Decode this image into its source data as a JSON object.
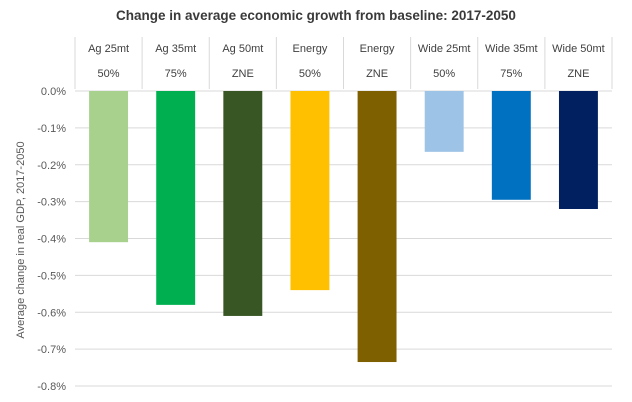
{
  "chart_data": {
    "type": "bar",
    "title": "Change in average economic growth from baseline: 2017-2050",
    "xlabel": "",
    "ylabel": "Average change in real GDP, 2017-2050",
    "ylim": [
      -0.8,
      0.0
    ],
    "yticks": [
      0.0,
      -0.1,
      -0.2,
      -0.3,
      -0.4,
      -0.5,
      -0.6,
      -0.7,
      -0.8
    ],
    "ytick_labels": [
      "0.0%",
      "-0.1%",
      "-0.2%",
      "-0.3%",
      "-0.4%",
      "-0.5%",
      "-0.6%",
      "-0.7%",
      "-0.8%"
    ],
    "grid": true,
    "legend": "none",
    "categories": [
      {
        "label": "Ag 25mt",
        "sublabel": "50%"
      },
      {
        "label": "Ag 35mt",
        "sublabel": "75%"
      },
      {
        "label": "Ag 50mt",
        "sublabel": "ZNE"
      },
      {
        "label": "Energy",
        "sublabel": "50%"
      },
      {
        "label": "Energy",
        "sublabel": "ZNE"
      },
      {
        "label": "Wide 25mt",
        "sublabel": "50%"
      },
      {
        "label": "Wide 35mt",
        "sublabel": "75%"
      },
      {
        "label": "Wide 50mt",
        "sublabel": "ZNE"
      }
    ],
    "values": [
      -0.41,
      -0.58,
      -0.61,
      -0.54,
      -0.735,
      -0.165,
      -0.295,
      -0.32
    ],
    "colors": [
      "#a9d18e",
      "#00b050",
      "#375623",
      "#ffc000",
      "#7f6000",
      "#9dc3e6",
      "#0070c0",
      "#002060"
    ],
    "gridline_color": "#d9d9d9",
    "header_border_color": "#d9d9d9"
  }
}
